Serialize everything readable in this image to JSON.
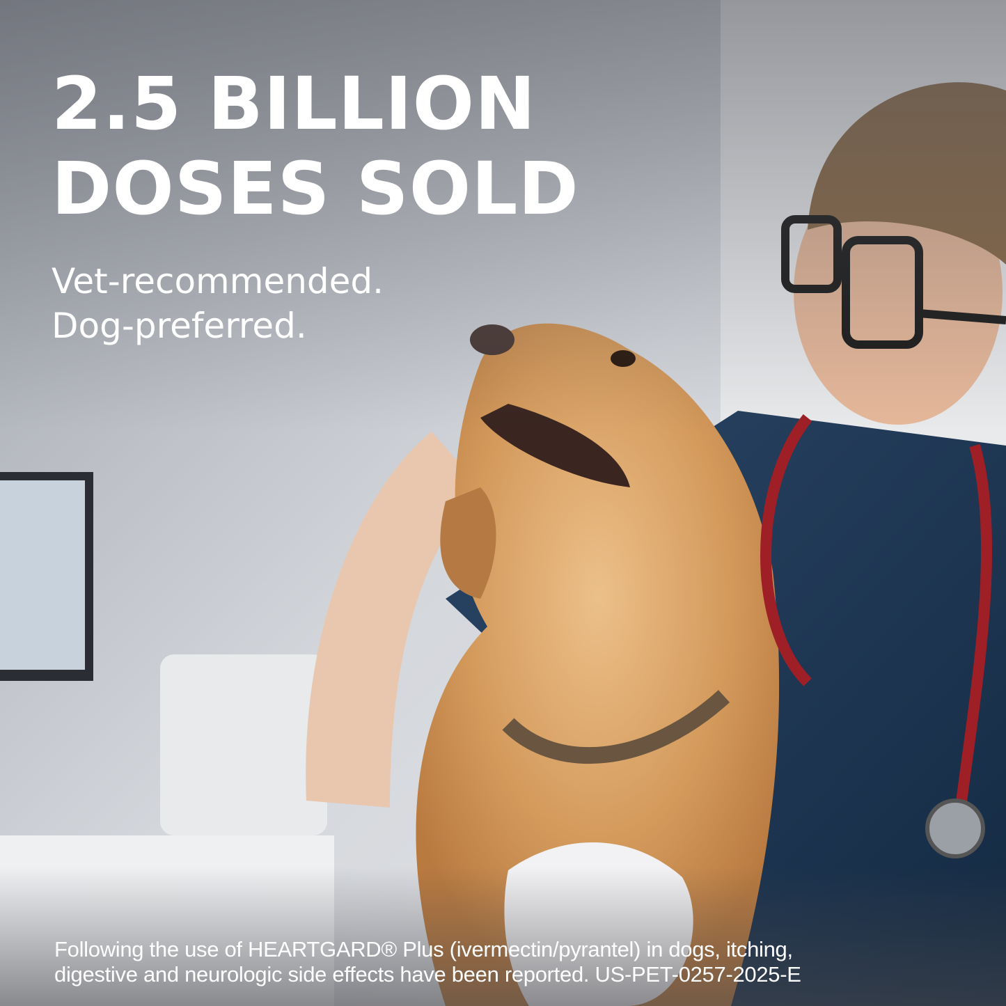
{
  "headline": {
    "line1": "2.5 BILLION",
    "line2": "DOSES SOLD"
  },
  "subheadline": {
    "line1": "Vet-recommended.",
    "line2": "Dog-preferred."
  },
  "disclaimer": {
    "line1": "Following the use of HEARTGARD® Plus (ivermectin/pyrantel) in dogs, itching,",
    "line2": "digestive and neurologic side effects have been reported. US-PET-0257-2025-E"
  },
  "colors": {
    "text": "#ffffff",
    "scrubs": "#1e3550",
    "dog_fur": "#d9a567",
    "background": "#c9ccd2",
    "stethoscope": "#9e1f26"
  }
}
